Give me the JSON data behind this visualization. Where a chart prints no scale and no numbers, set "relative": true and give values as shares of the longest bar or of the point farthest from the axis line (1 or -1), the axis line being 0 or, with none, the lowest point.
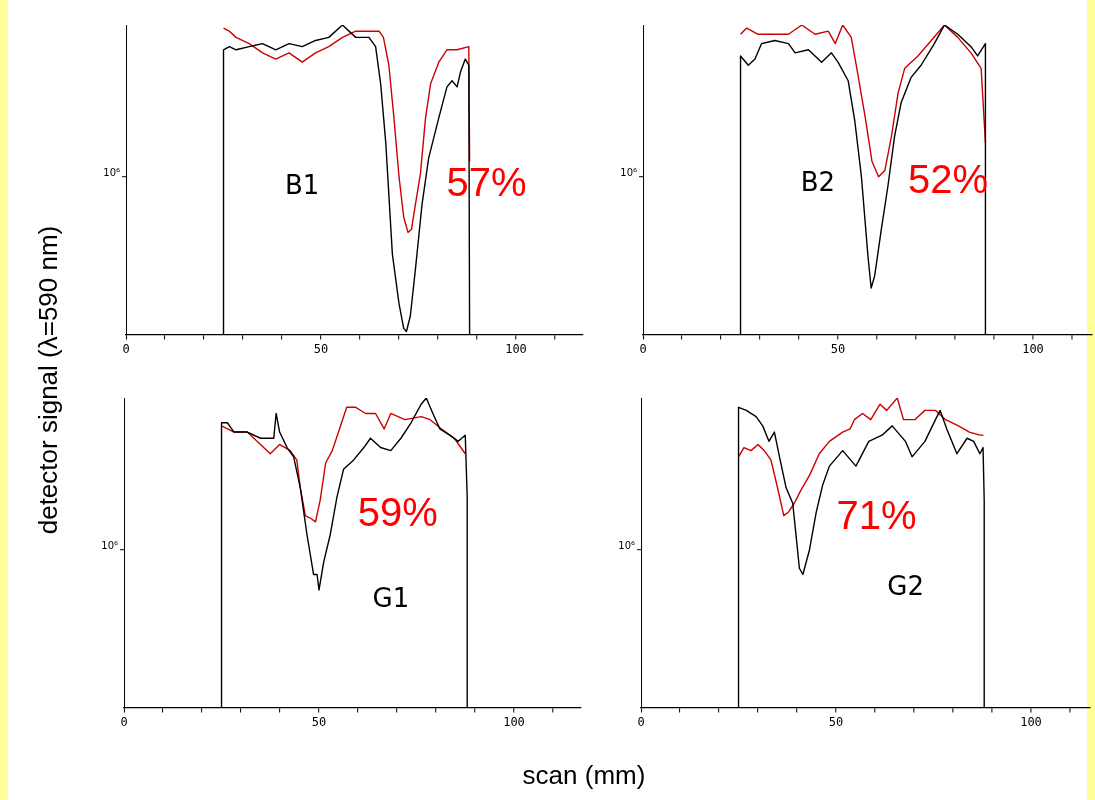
{
  "chart_data": [
    {
      "type": "line",
      "relative": true,
      "ylabel": "detector signal (λ=590 nm)",
      "xlim": [
        0,
        117
      ],
      "xticks": [
        0,
        {
          "value": 10,
          "label": null
        },
        {
          "value": 20,
          "label": null
        },
        {
          "value": 30,
          "label": null
        },
        {
          "value": 40,
          "label": null
        },
        50,
        {
          "value": 60,
          "label": null
        },
        {
          "value": 70,
          "label": null
        },
        {
          "value": 80,
          "label": null
        },
        {
          "value": 90,
          "label": null
        },
        100,
        {
          "value": 110,
          "label": null
        }
      ],
      "tick_labels": "x",
      "marker": "none",
      "line_style": "solid",
      "annotations": [
        "10⁶",
        "B1",
        "57%"
      ],
      "series": [
        {
          "color": "#000000",
          "x": [
            25,
            25,
            26.5,
            28.2,
            31.6,
            35,
            38.4,
            41.8,
            45.2,
            48.6,
            52,
            55.5,
            58.9,
            62.3,
            64,
            65.3,
            66.6,
            68.3,
            70,
            71.2,
            71.9,
            72.9,
            74.2,
            75.9,
            77.6,
            80.2,
            82.3,
            83.6,
            84.9,
            85.8,
            87,
            87.9,
            88.1
          ],
          "values": [
            0,
            0.92,
            0.93,
            0.92,
            0.93,
            0.94,
            0.92,
            0.94,
            0.93,
            0.95,
            0.96,
            1,
            0.96,
            0.96,
            0.93,
            0.81,
            0.62,
            0.26,
            0.1,
            0.02,
            0.01,
            0.06,
            0.21,
            0.42,
            0.57,
            0.7,
            0.8,
            0.82,
            0.8,
            0.85,
            0.89,
            0.87,
            0
          ]
        },
        {
          "color": "#cc0000",
          "x": [
            25,
            26.5,
            28.2,
            31.6,
            35,
            38.4,
            41.8,
            45.2,
            48.6,
            52,
            55.5,
            58.9,
            62.3,
            64.9,
            66,
            67.4,
            68.7,
            70,
            71.2,
            72.3,
            73.2,
            74.2,
            75.5,
            76.8,
            78.1,
            80.2,
            82.3,
            84.9,
            87.9,
            88.1
          ],
          "values": [
            0.99,
            0.98,
            0.96,
            0.94,
            0.91,
            0.89,
            0.91,
            0.88,
            0.91,
            0.93,
            0.96,
            0.98,
            0.98,
            0.98,
            0.96,
            0.87,
            0.7,
            0.51,
            0.38,
            0.33,
            0.34,
            0.42,
            0.52,
            0.7,
            0.81,
            0.88,
            0.92,
            0.92,
            0.93,
            0.56
          ]
        }
      ]
    },
    {
      "type": "line",
      "relative": true,
      "xlim": [
        0,
        115
      ],
      "xticks": [
        0,
        {
          "value": 10,
          "label": null
        },
        {
          "value": 20,
          "label": null
        },
        {
          "value": 30,
          "label": null
        },
        {
          "value": 40,
          "label": null
        },
        50,
        {
          "value": 60,
          "label": null
        },
        {
          "value": 70,
          "label": null
        },
        {
          "value": 80,
          "label": null
        },
        {
          "value": 90,
          "label": null
        },
        100,
        {
          "value": 110,
          "label": null
        }
      ],
      "tick_labels": "x",
      "marker": "none",
      "line_style": "solid",
      "annotations": [
        "10⁶",
        "B2",
        "52%"
      ],
      "series": [
        {
          "color": "#000000",
          "x": [
            25,
            25,
            27,
            28.7,
            30.4,
            33.8,
            37.3,
            39,
            42.4,
            45.8,
            48.3,
            50,
            52.6,
            54.3,
            56,
            57.7,
            58.5,
            59.4,
            61.1,
            62.8,
            64.5,
            66.2,
            68.7,
            71.3,
            74.7,
            77.3,
            80.7,
            84.1,
            85.8,
            87.8,
            87.8
          ],
          "values": [
            0,
            0.9,
            0.87,
            0.89,
            0.94,
            0.95,
            0.94,
            0.91,
            0.92,
            0.88,
            0.91,
            0.88,
            0.82,
            0.69,
            0.51,
            0.25,
            0.15,
            0.19,
            0.34,
            0.48,
            0.64,
            0.75,
            0.83,
            0.87,
            0.94,
            1,
            0.97,
            0.93,
            0.9,
            0.94,
            0
          ]
        },
        {
          "color": "#cc0000",
          "x": [
            25,
            26.6,
            29.5,
            33.8,
            37.3,
            40.7,
            44.1,
            47.5,
            49.3,
            51.2,
            53.4,
            55.1,
            57,
            58.7,
            60.4,
            62,
            63.7,
            65.4,
            67.1,
            70.5,
            73.9,
            77.3,
            80.7,
            84.1,
            86.7,
            87.8
          ],
          "values": [
            0.97,
            0.99,
            0.97,
            0.97,
            0.97,
            1,
            0.97,
            0.98,
            0.94,
            1,
            0.96,
            0.84,
            0.7,
            0.56,
            0.51,
            0.53,
            0.64,
            0.78,
            0.86,
            0.9,
            0.95,
            1,
            0.96,
            0.91,
            0.86,
            0.62
          ]
        }
      ]
    },
    {
      "type": "line",
      "relative": true,
      "xlabel": "scan (mm)",
      "xlim": [
        0,
        117
      ],
      "xticks": [
        0,
        {
          "value": 10,
          "label": null
        },
        {
          "value": 20,
          "label": null
        },
        {
          "value": 30,
          "label": null
        },
        {
          "value": 40,
          "label": null
        },
        50,
        {
          "value": 60,
          "label": null
        },
        {
          "value": 70,
          "label": null
        },
        {
          "value": 80,
          "label": null
        },
        {
          "value": 90,
          "label": null
        },
        100,
        {
          "value": 110,
          "label": null
        }
      ],
      "tick_labels": "x",
      "marker": "none",
      "line_style": "solid",
      "annotations": [
        "10⁶",
        "G1",
        "59%"
      ],
      "series": [
        {
          "color": "#000000",
          "x": [
            25,
            25,
            26.5,
            28.2,
            31.6,
            35,
            38.4,
            39,
            39.9,
            41.8,
            43.5,
            45.2,
            46.9,
            48.6,
            49.5,
            50,
            51.2,
            52.9,
            54.6,
            56.3,
            58.9,
            61.5,
            63.2,
            65.8,
            68.4,
            71,
            73.6,
            76.2,
            77.5,
            79.2,
            81,
            83.5,
            85.7,
            87.5,
            88,
            88
          ],
          "values": [
            0,
            0.92,
            0.92,
            0.89,
            0.89,
            0.87,
            0.87,
            0.95,
            0.89,
            0.84,
            0.81,
            0.71,
            0.56,
            0.43,
            0.43,
            0.38,
            0.47,
            0.56,
            0.68,
            0.77,
            0.8,
            0.84,
            0.87,
            0.84,
            0.83,
            0.87,
            0.92,
            0.98,
            1,
            0.95,
            0.9,
            0.88,
            0.86,
            0.88,
            0.68,
            0
          ]
        },
        {
          "color": "#cc0000",
          "x": [
            25,
            28.2,
            31.6,
            35,
            37.5,
            39.9,
            42.6,
            44.3,
            45.2,
            46.5,
            48,
            49.1,
            50.3,
            51.7,
            53.4,
            55,
            57.1,
            59.4,
            62,
            64.5,
            66.7,
            68.4,
            72,
            76.2,
            78.5,
            81.4,
            84.7,
            87.5
          ],
          "values": [
            0.91,
            0.89,
            0.89,
            0.85,
            0.82,
            0.85,
            0.83,
            0.8,
            0.71,
            0.62,
            0.61,
            0.6,
            0.67,
            0.79,
            0.83,
            0.89,
            0.97,
            0.97,
            0.95,
            0.95,
            0.9,
            0.95,
            0.93,
            0.94,
            0.93,
            0.9,
            0.87,
            0.82
          ]
        }
      ]
    },
    {
      "type": "line",
      "relative": true,
      "xlim": [
        0,
        115
      ],
      "xticks": [
        0,
        {
          "value": 10,
          "label": null
        },
        {
          "value": 20,
          "label": null
        },
        {
          "value": 30,
          "label": null
        },
        {
          "value": 40,
          "label": null
        },
        50,
        {
          "value": 60,
          "label": null
        },
        {
          "value": 70,
          "label": null
        },
        {
          "value": 80,
          "label": null
        },
        {
          "value": 90,
          "label": null
        },
        100,
        {
          "value": 110,
          "label": null
        }
      ],
      "tick_labels": "x",
      "marker": "none",
      "line_style": "solid",
      "annotations": [
        "10⁶",
        "G2",
        "71%"
      ],
      "series": [
        {
          "color": "#000000",
          "x": [
            25,
            25,
            27,
            29.5,
            31.2,
            32.8,
            34.2,
            35.5,
            37.2,
            38.9,
            39.8,
            40.6,
            41.5,
            43.2,
            44.9,
            46.6,
            48.3,
            51.7,
            55.1,
            58.4,
            61.8,
            64.4,
            67.8,
            69.5,
            72.8,
            75.5,
            76.7,
            78.4,
            81,
            83.6,
            85.3,
            86.9,
            87.7,
            88,
            88
          ],
          "values": [
            0,
            0.97,
            0.96,
            0.94,
            0.91,
            0.86,
            0.89,
            0.81,
            0.71,
            0.66,
            0.55,
            0.45,
            0.43,
            0.51,
            0.63,
            0.72,
            0.78,
            0.83,
            0.78,
            0.86,
            0.88,
            0.91,
            0.86,
            0.81,
            0.86,
            0.93,
            0.96,
            0.9,
            0.82,
            0.87,
            0.86,
            0.82,
            0.84,
            0.67,
            0
          ]
        },
        {
          "color": "#cc0000",
          "x": [
            25,
            26.4,
            28.2,
            30,
            31.6,
            33.3,
            35,
            36.6,
            37.7,
            39.3,
            40.9,
            43.2,
            45.7,
            48.3,
            51.7,
            53.6,
            54.7,
            56.8,
            58.9,
            61.3,
            63,
            65.7,
            67.3,
            70.2,
            72.8,
            75.5,
            78.1,
            81.4,
            84.2,
            86.9,
            87.8
          ],
          "values": [
            0.81,
            0.84,
            0.83,
            0.85,
            0.83,
            0.8,
            0.71,
            0.62,
            0.63,
            0.66,
            0.7,
            0.75,
            0.82,
            0.86,
            0.89,
            0.9,
            0.93,
            0.95,
            0.93,
            0.98,
            0.96,
            1,
            0.93,
            0.93,
            0.96,
            0.96,
            0.93,
            0.91,
            0.89,
            0.88,
            0.88
          ]
        }
      ]
    }
  ]
}
